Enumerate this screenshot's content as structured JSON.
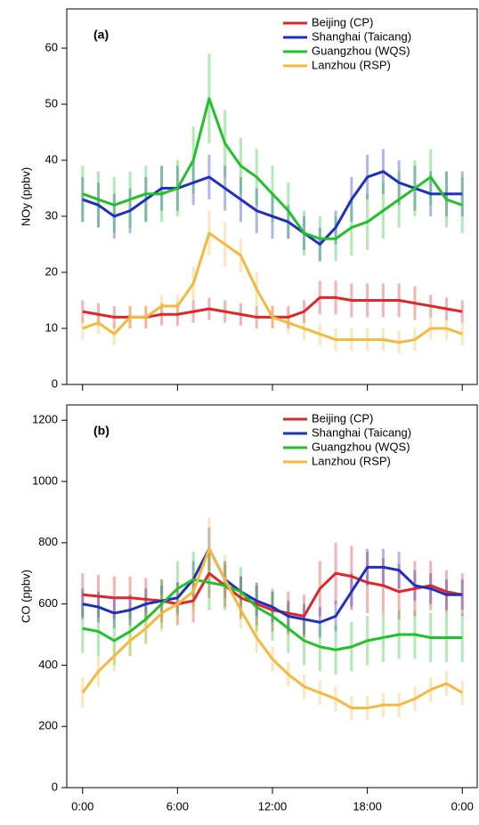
{
  "chart_data": [
    {
      "type": "line",
      "panel_label": "(a)",
      "y_label": "NOy (ppbv)",
      "x": [
        0,
        1,
        2,
        3,
        4,
        5,
        6,
        7,
        8,
        9,
        10,
        11,
        12,
        13,
        14,
        15,
        16,
        17,
        18,
        19,
        20,
        21,
        22,
        23,
        24
      ],
      "xlim": [
        -1,
        25
      ],
      "ylim": [
        0,
        67
      ],
      "yticks": [
        0,
        10,
        20,
        30,
        40,
        50,
        60
      ],
      "series": [
        {
          "name": "Beijing (CP)",
          "color": "#e0262a",
          "values": [
            13,
            12.5,
            12,
            12,
            12,
            12.5,
            12.5,
            13,
            13.5,
            13,
            12.5,
            12,
            12,
            12,
            13,
            15.5,
            15.5,
            15,
            15,
            15,
            15,
            14.5,
            14,
            13.5,
            13
          ],
          "errors": [
            2,
            2,
            2,
            2,
            2,
            2,
            2,
            2,
            2,
            2,
            2,
            2,
            2,
            2,
            2,
            3,
            3,
            3,
            3,
            3,
            3,
            3,
            2,
            2,
            2
          ]
        },
        {
          "name": "Shanghai (Taicang)",
          "color": "#1f2fbf",
          "values": [
            33,
            32,
            30,
            31,
            33,
            35,
            35,
            36,
            37,
            35,
            33,
            31,
            30,
            29,
            27,
            25,
            28,
            33,
            37,
            38,
            36,
            35,
            34,
            34,
            34
          ],
          "errors": [
            4,
            4,
            4,
            4,
            4,
            4,
            4,
            4,
            4,
            4,
            4,
            4,
            4,
            3,
            3,
            3,
            3,
            4,
            4,
            4,
            4,
            4,
            4,
            4,
            4
          ]
        },
        {
          "name": "Guangzhou (WQS)",
          "color": "#22c02a",
          "values": [
            34,
            33,
            32,
            33,
            34,
            34,
            35,
            40,
            51,
            43,
            39,
            37,
            34,
            31,
            27,
            26,
            26,
            28,
            29,
            31,
            33,
            35,
            37,
            33,
            32
          ],
          "errors": [
            5,
            5,
            5,
            5,
            5,
            5,
            5,
            6,
            8,
            6,
            5,
            5,
            5,
            5,
            4,
            4,
            4,
            5,
            5,
            5,
            5,
            5,
            5,
            5,
            5
          ]
        },
        {
          "name": "Lanzhou (RSP)",
          "color": "#f6b940",
          "values": [
            10,
            11,
            9,
            12,
            12,
            14,
            14,
            18,
            27,
            25,
            23,
            17,
            12,
            11,
            10,
            9,
            8,
            8,
            8,
            8,
            7.5,
            8,
            10,
            10,
            9
          ],
          "errors": [
            2,
            2,
            2,
            2,
            2,
            2,
            2,
            3,
            4,
            4,
            3,
            3,
            2,
            2,
            2,
            2,
            2,
            2,
            2,
            2,
            2,
            2,
            2,
            2,
            2
          ]
        }
      ]
    },
    {
      "type": "line",
      "panel_label": "(b)",
      "y_label": "CO (ppbv)",
      "x": [
        0,
        1,
        2,
        3,
        4,
        5,
        6,
        7,
        8,
        9,
        10,
        11,
        12,
        13,
        14,
        15,
        16,
        17,
        18,
        19,
        20,
        21,
        22,
        23,
        24
      ],
      "xlim": [
        -1,
        25
      ],
      "ylim": [
        0,
        1250
      ],
      "yticks": [
        0,
        200,
        400,
        600,
        800,
        1000,
        1200
      ],
      "xticks": [
        {
          "value": 0,
          "label": "0:00"
        },
        {
          "value": 6,
          "label": "6:00"
        },
        {
          "value": 12,
          "label": "12:00"
        },
        {
          "value": 18,
          "label": "18:00"
        },
        {
          "value": 24,
          "label": "0:00"
        }
      ],
      "series": [
        {
          "name": "Beijing (CP)",
          "color": "#e0262a",
          "values": [
            630,
            625,
            620,
            620,
            615,
            610,
            600,
            610,
            700,
            660,
            620,
            600,
            580,
            570,
            560,
            650,
            700,
            690,
            670,
            660,
            640,
            650,
            660,
            640,
            630
          ],
          "errors": [
            70,
            70,
            70,
            70,
            70,
            70,
            70,
            70,
            80,
            70,
            70,
            70,
            70,
            70,
            70,
            90,
            100,
            100,
            100,
            90,
            90,
            90,
            80,
            70,
            70
          ]
        },
        {
          "name": "Shanghai (Taicang)",
          "color": "#1f2fbf",
          "values": [
            600,
            590,
            570,
            580,
            600,
            610,
            620,
            680,
            780,
            680,
            640,
            610,
            590,
            560,
            550,
            540,
            560,
            640,
            720,
            720,
            710,
            660,
            650,
            630,
            630
          ],
          "errors": [
            50,
            50,
            50,
            50,
            50,
            50,
            50,
            60,
            70,
            60,
            50,
            50,
            50,
            50,
            50,
            50,
            50,
            60,
            60,
            60,
            60,
            50,
            50,
            50,
            50
          ]
        },
        {
          "name": "Guangzhou (WQS)",
          "color": "#22c02a",
          "values": [
            520,
            510,
            480,
            510,
            550,
            600,
            650,
            680,
            670,
            660,
            640,
            590,
            560,
            520,
            480,
            460,
            450,
            460,
            480,
            490,
            500,
            500,
            490,
            490,
            490
          ],
          "errors": [
            80,
            80,
            80,
            80,
            80,
            80,
            90,
            90,
            90,
            80,
            80,
            80,
            80,
            80,
            80,
            80,
            80,
            80,
            80,
            80,
            80,
            80,
            80,
            80,
            80
          ]
        },
        {
          "name": "Lanzhou (RSP)",
          "color": "#f6b940",
          "values": [
            310,
            380,
            430,
            480,
            520,
            570,
            600,
            640,
            780,
            680,
            580,
            490,
            420,
            370,
            330,
            310,
            290,
            260,
            260,
            270,
            270,
            290,
            320,
            340,
            310
          ],
          "errors": [
            50,
            50,
            50,
            50,
            50,
            60,
            60,
            70,
            100,
            80,
            60,
            50,
            40,
            40,
            40,
            40,
            40,
            40,
            40,
            40,
            40,
            40,
            40,
            40,
            40
          ]
        }
      ]
    }
  ]
}
